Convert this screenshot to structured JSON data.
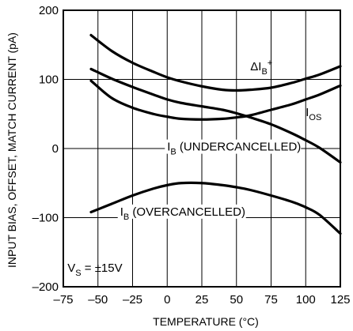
{
  "chart_data": {
    "type": "line",
    "xlabel": "TEMPERATURE (°C)",
    "ylabel": "INPUT BIAS, OFFSET, MATCH CURRENT (pA)",
    "xlim": [
      -75,
      125
    ],
    "ylim": [
      -200,
      200
    ],
    "x_ticks": [
      -75,
      -50,
      -25,
      0,
      25,
      50,
      75,
      100,
      125
    ],
    "x_tick_labels": [
      "–75",
      "–50",
      "–25",
      "0",
      "25",
      "50",
      "75",
      "100",
      "125"
    ],
    "y_ticks": [
      -200,
      -100,
      0,
      100,
      200
    ],
    "y_tick_labels": [
      "–200",
      "–100",
      "0",
      "100",
      "200"
    ],
    "grid": true,
    "series": [
      {
        "name": "ΔIB+",
        "x": [
          -55,
          -40,
          -25,
          -10,
          0,
          10,
          25,
          40,
          50,
          60,
          75,
          90,
          100,
          110,
          125
        ],
        "y": [
          164,
          141,
          124,
          111,
          103,
          97,
          90,
          85,
          84,
          85,
          88,
          95,
          101,
          107,
          119
        ]
      },
      {
        "name": "IOS",
        "x": [
          -55,
          -40,
          -25,
          -10,
          0,
          10,
          25,
          40,
          50,
          60,
          75,
          90,
          100,
          110,
          125
        ],
        "y": [
          98,
          73,
          59,
          50,
          46,
          43,
          42,
          43,
          45,
          48,
          56,
          64,
          71,
          78,
          91
        ]
      },
      {
        "name": "IB (UNDERCANCELLED)",
        "x": [
          -55,
          -40,
          -25,
          -10,
          0,
          10,
          25,
          40,
          50,
          60,
          75,
          90,
          100,
          110,
          125
        ],
        "y": [
          115,
          101,
          89,
          78,
          71,
          66,
          61,
          56,
          51,
          45,
          35,
          22,
          12,
          1,
          -20
        ]
      },
      {
        "name": "IB (OVERCANCELLED)",
        "x": [
          -55,
          -40,
          -25,
          -10,
          0,
          10,
          25,
          40,
          50,
          60,
          75,
          90,
          100,
          110,
          125
        ],
        "y": [
          -92,
          -80,
          -68,
          -58,
          -53,
          -50,
          -50,
          -53,
          -56,
          -60,
          -68,
          -77,
          -85,
          -96,
          -123
        ]
      }
    ],
    "annotations": [
      {
        "id": "delta-ib",
        "text": "ΔI",
        "sub": "B",
        "sup": "+",
        "x": 60,
        "y": 113
      },
      {
        "id": "ios",
        "text": "I",
        "sub": "OS",
        "x": 100,
        "y": 47
      },
      {
        "id": "ib-under",
        "text": "I",
        "sub": "B",
        "rest": " (UNDERCANCELLED)",
        "x": 0,
        "y": -3
      },
      {
        "id": "ib-over",
        "text": "I",
        "sub": "B",
        "rest": " (OVERCANCELLED)",
        "x": -34,
        "y": -97
      },
      {
        "id": "vs",
        "text": "V",
        "sub": "S",
        "rest": " = ±15V",
        "x": -72,
        "y": -178
      }
    ]
  }
}
